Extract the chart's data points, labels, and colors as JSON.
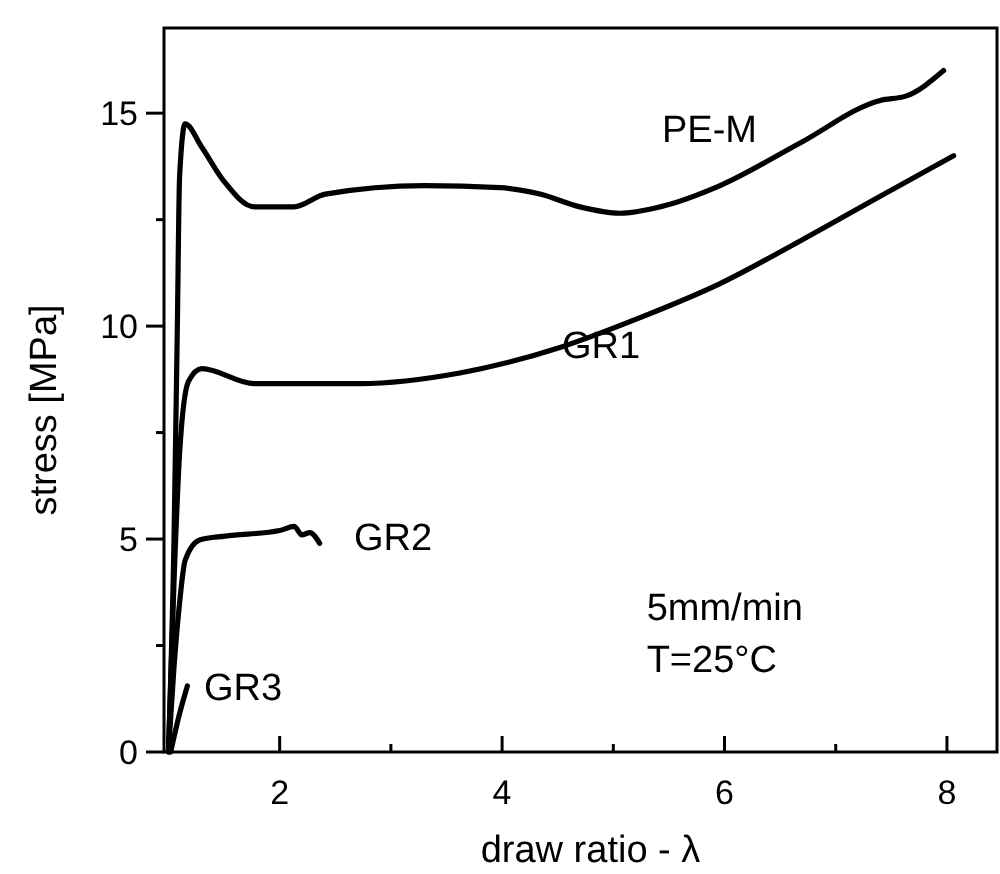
{
  "chart_data": {
    "type": "line",
    "xlabel": "draw ratio - λ",
    "ylabel": "stress [MPa]",
    "xlim": [
      0.96,
      8.45
    ],
    "ylim": [
      0,
      17
    ],
    "xticks": [
      2,
      {
        "value": 3,
        "label": null
      },
      4,
      {
        "value": 5,
        "label": null
      },
      6,
      {
        "value": 7,
        "label": null
      },
      8
    ],
    "yticks": [
      0,
      {
        "value": 2.5,
        "label": null
      },
      5,
      {
        "value": 7.5,
        "label": null
      },
      10,
      {
        "value": 12.5,
        "label": null
      },
      15
    ],
    "grid": false,
    "marker": "none",
    "line_style": "solid",
    "series": [
      {
        "name": "PE-M",
        "color": "#000000",
        "x": [
          1.0,
          1.05,
          1.08,
          1.1,
          1.15,
          1.3,
          1.5,
          1.77,
          2.13,
          2.41,
          3.3,
          3.98,
          4.34,
          4.7,
          5.06,
          5.42,
          5.96,
          6.68,
          7.4,
          7.63,
          7.97
        ],
        "values": [
          0,
          5,
          10,
          13.5,
          14.75,
          14.2,
          13.4,
          12.8,
          12.8,
          13.1,
          13.3,
          13.25,
          13.1,
          12.8,
          12.65,
          12.8,
          13.3,
          14.3,
          15.3,
          15.4,
          16.0
        ]
      },
      {
        "name": "GR1",
        "color": "#000000",
        "x": [
          1.0,
          1.05,
          1.1,
          1.18,
          1.3,
          1.77,
          2.72,
          3.62,
          4.52,
          5.24,
          5.96,
          6.68,
          7.4,
          8.06
        ],
        "values": [
          0,
          4,
          7,
          8.7,
          9.0,
          8.65,
          8.65,
          8.9,
          9.5,
          10.2,
          11.0,
          12.0,
          13.05,
          14.0
        ]
      },
      {
        "name": "GR2",
        "color": "#000000",
        "x": [
          1.0,
          1.05,
          1.1,
          1.15,
          1.28,
          1.51,
          2.0,
          2.13,
          2.2,
          2.27,
          2.36
        ],
        "values": [
          0,
          2,
          3.5,
          4.5,
          4.98,
          5.07,
          5.2,
          5.3,
          5.1,
          5.15,
          4.9
        ]
      },
      {
        "name": "GR3",
        "color": "#000000",
        "x": [
          1.02,
          1.1,
          1.17
        ],
        "values": [
          0,
          0.9,
          1.55
        ]
      }
    ],
    "annotations": [
      "5mm/min",
      "T=25°C"
    ]
  }
}
